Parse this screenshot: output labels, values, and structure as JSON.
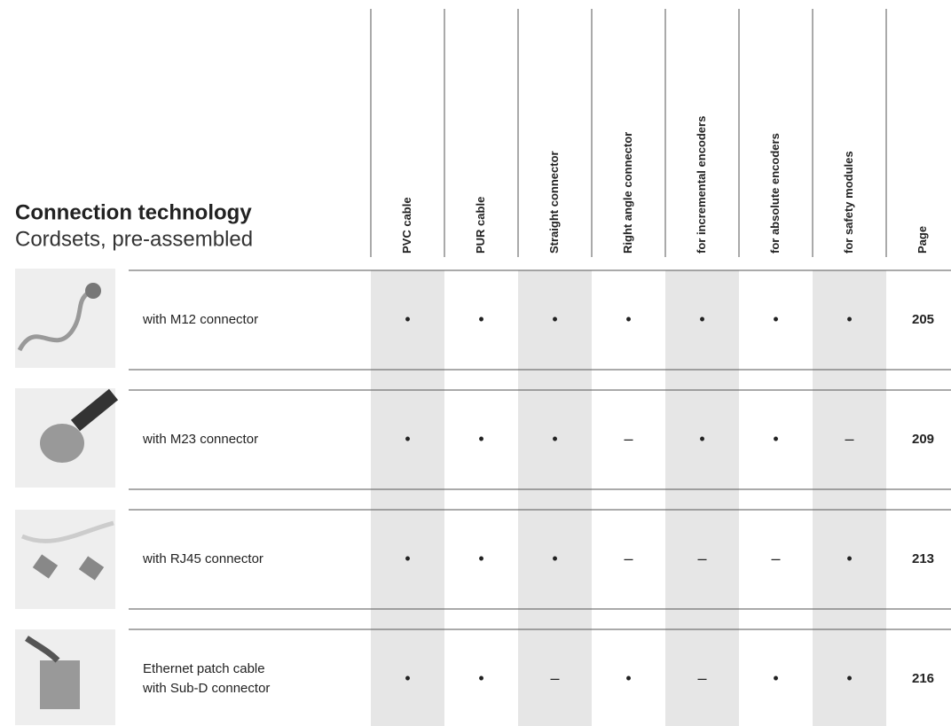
{
  "header": {
    "title": "Connection technology",
    "subtitle": "Cordsets, pre-assembled"
  },
  "table": {
    "columns": [
      "PVC cable",
      "PUR cable",
      "Straight connector",
      "Right angle connector",
      "for incremental encoders",
      "for absolute encoders",
      "for safety modules",
      "Page"
    ],
    "rows": [
      {
        "label": [
          "with M12 connector"
        ],
        "cells": [
          "•",
          "•",
          "•",
          "•",
          "•",
          "•",
          "•"
        ],
        "page": "205"
      },
      {
        "label": [
          "with M23 connector"
        ],
        "cells": [
          "•",
          "•",
          "•",
          "–",
          "•",
          "•",
          "–"
        ],
        "page": "209"
      },
      {
        "label": [
          "with RJ45 connector"
        ],
        "cells": [
          "•",
          "•",
          "•",
          "–",
          "–",
          "–",
          "•"
        ],
        "page": "213"
      },
      {
        "label": [
          "Ethernet patch cable",
          "with Sub-D connector"
        ],
        "cells": [
          "•",
          "•",
          "–",
          "•",
          "–",
          "•",
          "•"
        ],
        "page": "216"
      }
    ]
  }
}
